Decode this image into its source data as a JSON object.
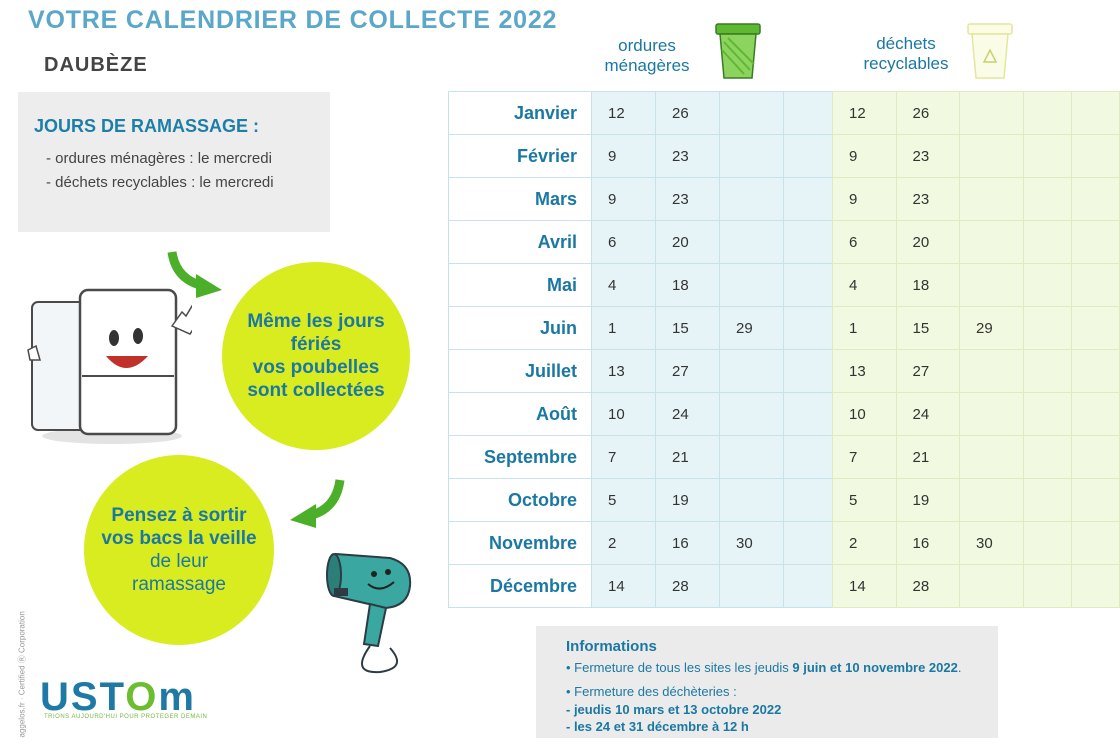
{
  "title": "VOTRE CALENDRIER DE COLLECTE 2022",
  "commune": "DAUBÈZE",
  "collection_days": {
    "heading": "JOURS DE RAMASSAGE :",
    "lines": [
      "- ordures ménagères : le mercredi",
      "- déchets recyclables : le mercredi"
    ]
  },
  "bubble1": [
    "Même les jours",
    "fériés",
    "vos poubelles",
    "sont collectées"
  ],
  "bubble2": [
    "Pensez à sortir",
    "vos bacs la veille",
    "de leur",
    "ramassage"
  ],
  "columns": {
    "household": [
      "ordures",
      "ménagères"
    ],
    "recyclable": [
      "déchets",
      "recyclables"
    ]
  },
  "months": [
    {
      "name": "Janvier",
      "om": [
        "12",
        "26",
        ""
      ],
      "rec": [
        "12",
        "26",
        ""
      ]
    },
    {
      "name": "Février",
      "om": [
        "9",
        "23",
        ""
      ],
      "rec": [
        "9",
        "23",
        ""
      ]
    },
    {
      "name": "Mars",
      "om": [
        "9",
        "23",
        ""
      ],
      "rec": [
        "9",
        "23",
        ""
      ]
    },
    {
      "name": "Avril",
      "om": [
        "6",
        "20",
        ""
      ],
      "rec": [
        "6",
        "20",
        ""
      ]
    },
    {
      "name": "Mai",
      "om": [
        "4",
        "18",
        ""
      ],
      "rec": [
        "4",
        "18",
        ""
      ]
    },
    {
      "name": "Juin",
      "om": [
        "1",
        "15",
        "29"
      ],
      "rec": [
        "1",
        "15",
        "29"
      ]
    },
    {
      "name": "Juillet",
      "om": [
        "13",
        "27",
        ""
      ],
      "rec": [
        "13",
        "27",
        ""
      ]
    },
    {
      "name": "Août",
      "om": [
        "10",
        "24",
        ""
      ],
      "rec": [
        "10",
        "24",
        ""
      ]
    },
    {
      "name": "Septembre",
      "om": [
        "7",
        "21",
        ""
      ],
      "rec": [
        "7",
        "21",
        ""
      ]
    },
    {
      "name": "Octobre",
      "om": [
        "5",
        "19",
        ""
      ],
      "rec": [
        "5",
        "19",
        ""
      ]
    },
    {
      "name": "Novembre",
      "om": [
        "2",
        "16",
        "30"
      ],
      "rec": [
        "2",
        "16",
        "30"
      ]
    },
    {
      "name": "Décembre",
      "om": [
        "14",
        "28",
        ""
      ],
      "rec": [
        "14",
        "28",
        ""
      ]
    }
  ],
  "info": {
    "heading": "Informations",
    "line1_pre": "• Fermeture de tous les sites les jeudis ",
    "line1_bold": "9 juin et 10 novembre 2022",
    "line1_post": ".",
    "line2": "• Fermeture des déchèteries :",
    "line3": "- jeudis 10 mars et 13 octobre 2022",
    "line4": "- les 24 et 31 décembre à 12 h"
  },
  "logo": {
    "part1": "UST",
    "part2": "O",
    "part3": "m",
    "tagline": "TRIONS AUJOURD'HUI POUR PROTEGER DEMAIN"
  },
  "side_text": "aggelos.fr · Certified Ⓡ Corporation",
  "colors": {
    "blue": "#1b78a3",
    "title": "#5aa7c9",
    "lime": "#d9ec1f",
    "green": "#6cbd2f"
  },
  "icons": [
    "green-bin-icon",
    "yellow-recycle-bin-icon",
    "fridge-mascot-icon",
    "hairdryer-mascot-icon",
    "green-arrow-icon"
  ]
}
